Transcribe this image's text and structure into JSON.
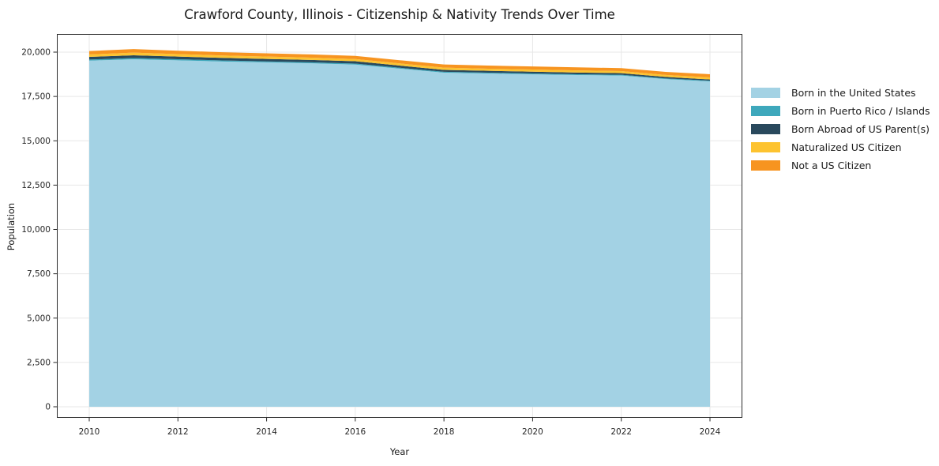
{
  "chart_data": {
    "type": "area",
    "stacked": true,
    "title": "Crawford County, Illinois - Citizenship & Nativity Trends Over Time",
    "xlabel": "Year",
    "ylabel": "Population",
    "x": [
      2010,
      2011,
      2012,
      2013,
      2014,
      2015,
      2016,
      2017,
      2018,
      2019,
      2020,
      2021,
      2022,
      2023,
      2024
    ],
    "series": [
      {
        "name": "Born in the United States",
        "color": "#a3d2e4",
        "values": [
          19520,
          19600,
          19540,
          19470,
          19420,
          19370,
          19300,
          19070,
          18840,
          18790,
          18750,
          18710,
          18680,
          18480,
          18350
        ]
      },
      {
        "name": "Born in Puerto Rico / Islands",
        "color": "#3ea8bc",
        "values": [
          60,
          65,
          60,
          60,
          55,
          55,
          55,
          50,
          50,
          50,
          50,
          45,
          45,
          40,
          40
        ]
      },
      {
        "name": "Born Abroad of US Parent(s)",
        "color": "#29495d",
        "values": [
          150,
          155,
          150,
          145,
          140,
          135,
          130,
          120,
          110,
          105,
          100,
          95,
          90,
          80,
          70
        ]
      },
      {
        "name": "Naturalized US Citizen",
        "color": "#fdc330",
        "values": [
          140,
          150,
          140,
          135,
          135,
          130,
          125,
          125,
          125,
          120,
          120,
          120,
          115,
          115,
          115
        ]
      },
      {
        "name": "Not a US Citizen",
        "color": "#f79420",
        "values": [
          190,
          200,
          190,
          185,
          185,
          180,
          180,
          180,
          180,
          175,
          175,
          170,
          170,
          170,
          180
        ]
      }
    ],
    "ylim": [
      0,
      21000
    ],
    "yticks": [
      {
        "value": 0,
        "label": "0"
      },
      {
        "value": 2500,
        "label": "2,500"
      },
      {
        "value": 5000,
        "label": "5,000"
      },
      {
        "value": 7500,
        "label": "7,500"
      },
      {
        "value": 10000,
        "label": "10,000"
      },
      {
        "value": 12500,
        "label": "12,500"
      },
      {
        "value": 15000,
        "label": "15,000"
      },
      {
        "value": 17500,
        "label": "17,500"
      },
      {
        "value": 20000,
        "label": "20,000"
      }
    ],
    "xticks": [
      {
        "value": 2010,
        "label": "2010"
      },
      {
        "value": 2012,
        "label": "2012"
      },
      {
        "value": 2014,
        "label": "2014"
      },
      {
        "value": 2016,
        "label": "2016"
      },
      {
        "value": 2018,
        "label": "2018"
      },
      {
        "value": 2020,
        "label": "2020"
      },
      {
        "value": 2022,
        "label": "2022"
      },
      {
        "value": 2024,
        "label": "2024"
      }
    ],
    "grid": true,
    "legend_position": "right"
  },
  "style": {
    "grid_color": "#e7e7e7",
    "spine_color": "#2b2b2b",
    "tick_color": "#262626",
    "background": "#ffffff"
  }
}
